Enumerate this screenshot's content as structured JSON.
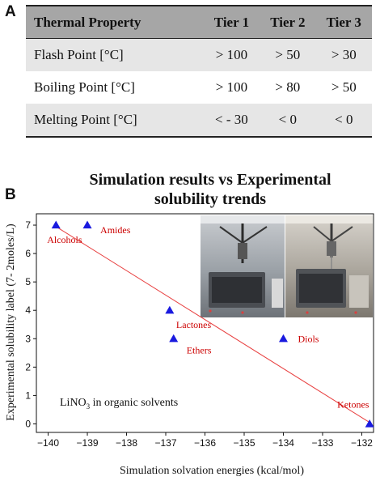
{
  "panel_a": {
    "label": "A",
    "headers": [
      "Thermal Property",
      "Tier 1",
      "Tier 2",
      "Tier 3"
    ],
    "rows": [
      {
        "property": "Flash Point [°C]",
        "tier1": "> 100",
        "tier2": "> 50",
        "tier3": "> 30"
      },
      {
        "property": "Boiling Point [°C]",
        "tier1": "> 100",
        "tier2": "> 80",
        "tier3": "> 50"
      },
      {
        "property": "Melting Point [°C]",
        "tier1": "< - 30",
        "tier2": "< 0",
        "tier3": "< 0"
      }
    ]
  },
  "panel_b": {
    "label": "B",
    "annotation": "LiNO",
    "annotation_sub": "3",
    "annotation_rest": " in organic solvents"
  },
  "chart_data": {
    "type": "scatter",
    "title": "Simulation results vs Experimental solubility trends",
    "title_line1": "Simulation results vs Experimental",
    "title_line2": "solubility trends",
    "xlabel": "Simulation solvation energies (kcal/mol)",
    "ylabel": "Experimental solubility label (7- 2moles/L)",
    "xlim": [
      -140.3,
      -131.7
    ],
    "ylim": [
      -0.3,
      7.4
    ],
    "xticks": [
      -140,
      -139,
      -138,
      -137,
      -136,
      -135,
      -134,
      -133,
      -132
    ],
    "xtick_labels": [
      "−140",
      "−139",
      "−138",
      "−137",
      "−136",
      "−135",
      "−134",
      "−133",
      "−132"
    ],
    "yticks": [
      0,
      1,
      2,
      3,
      4,
      5,
      6,
      7
    ],
    "ytick_labels": [
      "0",
      "1",
      "2",
      "3",
      "4",
      "5",
      "6",
      "7"
    ],
    "grid": false,
    "marker_color": "#1a1adf",
    "label_color": "#cc0000",
    "trendline_color": "#e84040",
    "points": [
      {
        "x": -139.8,
        "y": 7,
        "label": "Alcohols"
      },
      {
        "x": -139.0,
        "y": 7,
        "label": "Amides"
      },
      {
        "x": -136.9,
        "y": 4,
        "label": "Lactones"
      },
      {
        "x": -136.8,
        "y": 3,
        "label": "Ethers"
      },
      {
        "x": -134.0,
        "y": 3,
        "label": "Diols"
      },
      {
        "x": -131.8,
        "y": 0,
        "label": "Ketones"
      }
    ],
    "trendline": {
      "x": [
        -139.8,
        -131.8
      ],
      "y": [
        6.95,
        0.05
      ]
    }
  }
}
